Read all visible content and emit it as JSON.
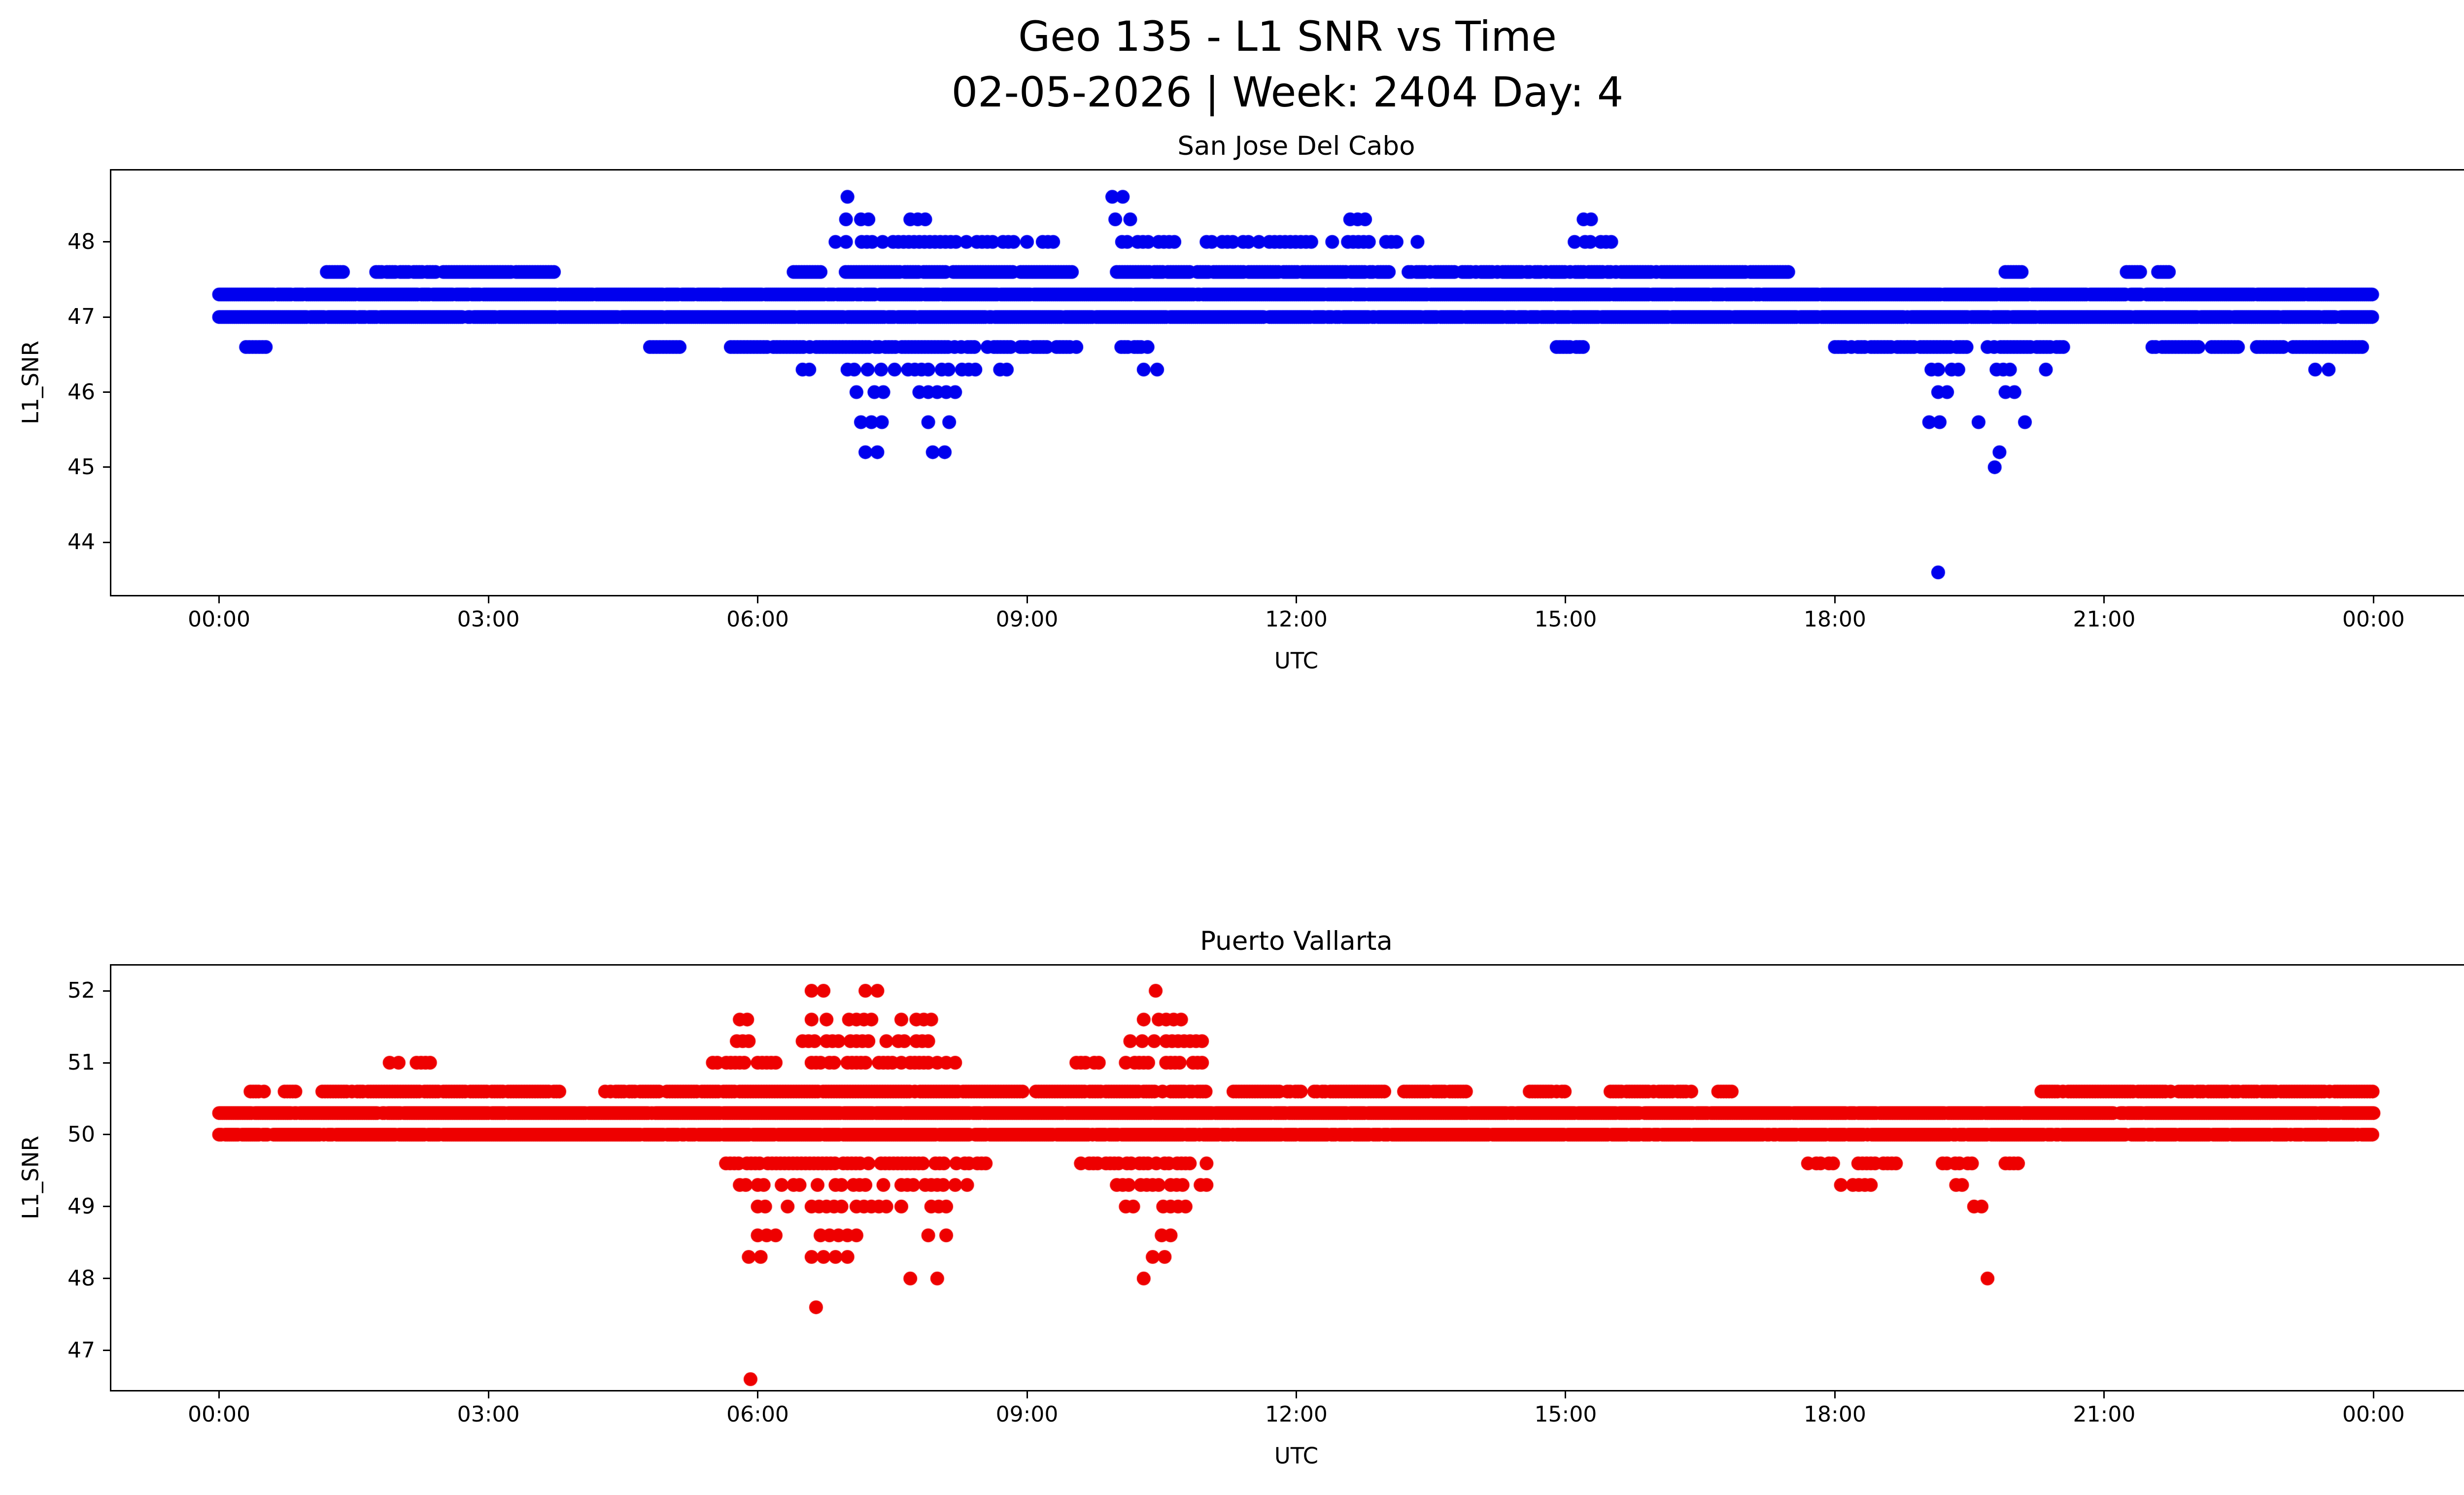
{
  "figure": {
    "title_line1": "Geo 135 - L1 SNR vs Time",
    "title_line2": "02-05-2026 | Week: 2404 Day: 4"
  },
  "chart_data": [
    {
      "type": "scatter",
      "title": "San Jose Del Cabo",
      "xlabel": "UTC",
      "ylabel": "L1_SNR",
      "color": "#0000ee",
      "marker": "o",
      "xlim_hours": [
        -1.2,
        25.2
      ],
      "ylim": [
        43.3,
        48.95
      ],
      "y_ticks": [
        44,
        45,
        46,
        47,
        48
      ],
      "x_ticks": {
        "hours": [
          0,
          3,
          6,
          9,
          12,
          15,
          18,
          21,
          24
        ],
        "labels": [
          "00:00",
          "03:00",
          "06:00",
          "09:00",
          "12:00",
          "15:00",
          "18:00",
          "21:00",
          "00:00"
        ]
      },
      "bands": [
        {
          "y": 47.3,
          "step_min": 1.3,
          "gap": 0.05,
          "segments": [
            [
              0,
              24
            ]
          ]
        },
        {
          "y": 47.0,
          "step_min": 1.3,
          "gap": 0.05,
          "segments": [
            [
              0,
              24
            ]
          ]
        },
        {
          "y": 47.6,
          "step_min": 1.8,
          "gap": 0.1,
          "segments": [
            [
              1.2,
              1.4
            ],
            [
              1.75,
              3.75
            ],
            [
              6.4,
              6.7
            ],
            [
              6.95,
              9.5
            ],
            [
              10.0,
              13.05
            ],
            [
              13.25,
              17.5
            ],
            [
              19.9,
              20.1
            ],
            [
              21.25,
              21.4
            ],
            [
              21.6,
              21.75
            ]
          ]
        },
        {
          "y": 46.6,
          "step_min": 2.2,
          "gap": 0.15,
          "segments": [
            [
              0.3,
              0.55
            ],
            [
              4.8,
              5.2
            ],
            [
              5.7,
              9.6
            ],
            [
              10.05,
              10.35
            ],
            [
              14.9,
              15.2
            ],
            [
              18.0,
              19.5
            ],
            [
              19.7,
              20.6
            ],
            [
              21.5,
              22.5
            ],
            [
              22.7,
              23.9
            ]
          ]
        },
        {
          "y": 48.0,
          "step_min": 3.5,
          "gap": 0.3,
          "segments": [
            [
              6.75,
              8.9
            ],
            [
              9.0,
              9.4
            ],
            [
              10.0,
              10.7
            ],
            [
              11.0,
              12.2
            ],
            [
              12.4,
              12.85
            ],
            [
              13.0,
              13.35
            ],
            [
              15.1,
              15.55
            ]
          ]
        },
        {
          "y": 48.3,
          "step_min": 5,
          "gap": 0.3,
          "segments": [
            [
              6.9,
              7.35
            ],
            [
              7.7,
              7.9
            ],
            [
              9.9,
              10.25
            ],
            [
              12.6,
              12.8
            ],
            [
              15.2,
              15.4
            ]
          ]
        },
        {
          "y": 48.6,
          "step_min": 7,
          "gap": 0.2,
          "segments": [
            [
              7.0,
              7.2
            ],
            [
              9.95,
              10.15
            ]
          ]
        },
        {
          "y": 46.3,
          "step_min": 4.5,
          "gap": 0.35,
          "segments": [
            [
              6.5,
              6.65
            ],
            [
              7.0,
              8.45
            ],
            [
              8.7,
              8.85
            ],
            [
              10.3,
              10.5
            ],
            [
              19.0,
              19.4
            ],
            [
              19.8,
              20.0
            ],
            [
              20.2,
              20.4
            ],
            [
              23.35,
              23.5
            ]
          ]
        },
        {
          "y": 46.0,
          "step_min": 6,
          "gap": 0.3,
          "segments": [
            [
              7.1,
              7.55
            ],
            [
              7.8,
              8.25
            ],
            [
              19.05,
              19.3
            ],
            [
              19.9,
              20.05
            ]
          ]
        },
        {
          "y": 45.6,
          "step_min": 7,
          "gap": 0.3,
          "segments": [
            [
              7.15,
              7.4
            ],
            [
              7.9,
              8.15
            ],
            [
              19.05,
              19.25
            ],
            [
              19.6,
              19.75
            ],
            [
              20.0,
              20.15
            ]
          ]
        },
        {
          "y": 45.2,
          "step_min": 8,
          "gap": 0.25,
          "segments": [
            [
              7.2,
              7.35
            ],
            [
              7.95,
              8.2
            ],
            [
              19.7,
              19.85
            ]
          ]
        },
        {
          "y": 44.9,
          "step_min": 10,
          "gap": 0.2,
          "segments": [
            [
              7.15,
              7.3
            ],
            [
              7.85,
              8.0
            ]
          ]
        }
      ],
      "outliers": [
        [
          19.15,
          43.6
        ],
        [
          19.78,
          45.0
        ]
      ]
    },
    {
      "type": "scatter",
      "title": "Puerto Vallarta",
      "xlabel": "UTC",
      "ylabel": "L1_SNR",
      "color": "#ee0000",
      "marker": "o",
      "xlim_hours": [
        -1.2,
        25.2
      ],
      "ylim": [
        46.45,
        52.35
      ],
      "y_ticks": [
        47,
        48,
        49,
        50,
        51,
        52
      ],
      "x_ticks": {
        "hours": [
          0,
          3,
          6,
          9,
          12,
          15,
          18,
          21,
          24
        ],
        "labels": [
          "00:00",
          "03:00",
          "06:00",
          "09:00",
          "12:00",
          "15:00",
          "18:00",
          "21:00",
          "00:00"
        ]
      },
      "bands": [
        {
          "y": 50.3,
          "step_min": 1.2,
          "gap": 0.04,
          "segments": [
            [
              0,
              24
            ]
          ]
        },
        {
          "y": 50.0,
          "step_min": 1.4,
          "gap": 0.08,
          "segments": [
            [
              0,
              24
            ]
          ]
        },
        {
          "y": 50.6,
          "step_min": 1.8,
          "gap": 0.1,
          "segments": [
            [
              0.35,
              0.5
            ],
            [
              0.7,
              0.85
            ],
            [
              1.15,
              3.8
            ],
            [
              4.3,
              8.95
            ],
            [
              9.1,
              11.0
            ],
            [
              11.3,
              12.05
            ],
            [
              12.2,
              13.0
            ],
            [
              13.2,
              13.9
            ],
            [
              14.6,
              15.0
            ],
            [
              15.5,
              16.4
            ],
            [
              16.7,
              16.85
            ],
            [
              20.3,
              24.0
            ]
          ]
        },
        {
          "y": 51.0,
          "step_min": 3,
          "gap": 0.25,
          "segments": [
            [
              1.9,
              2.0
            ],
            [
              2.2,
              2.35
            ],
            [
              5.5,
              6.35
            ],
            [
              6.6,
              8.2
            ],
            [
              9.55,
              9.85
            ],
            [
              10.1,
              11.0
            ]
          ]
        },
        {
          "y": 51.3,
          "step_min": 4,
          "gap": 0.3,
          "segments": [
            [
              5.7,
              6.2
            ],
            [
              6.5,
              7.95
            ],
            [
              10.15,
              10.95
            ]
          ]
        },
        {
          "y": 51.6,
          "step_min": 5,
          "gap": 0.3,
          "segments": [
            [
              5.8,
              6.15
            ],
            [
              6.6,
              7.35
            ],
            [
              7.6,
              8.05
            ],
            [
              10.3,
              10.75
            ]
          ]
        },
        {
          "y": 52.0,
          "step_min": 8,
          "gap": 0.2,
          "segments": [
            [
              6.6,
              6.75
            ],
            [
              7.2,
              7.4
            ],
            [
              10.3,
              10.45
            ]
          ]
        },
        {
          "y": 49.6,
          "step_min": 2.8,
          "gap": 0.25,
          "segments": [
            [
              5.6,
              8.55
            ],
            [
              9.6,
              11.0
            ],
            [
              17.7,
              18.75
            ],
            [
              19.2,
              19.55
            ],
            [
              19.9,
              20.05
            ]
          ]
        },
        {
          "y": 49.3,
          "step_min": 4,
          "gap": 0.3,
          "segments": [
            [
              5.8,
              8.35
            ],
            [
              10.0,
              11.0
            ],
            [
              18.0,
              18.45
            ],
            [
              19.35,
              19.5
            ]
          ]
        },
        {
          "y": 49.0,
          "step_min": 5,
          "gap": 0.3,
          "segments": [
            [
              6.0,
              6.35
            ],
            [
              6.6,
              8.2
            ],
            [
              10.1,
              10.95
            ],
            [
              19.55,
              19.7
            ]
          ]
        },
        {
          "y": 48.6,
          "step_min": 6,
          "gap": 0.3,
          "segments": [
            [
              6.0,
              6.25
            ],
            [
              6.6,
              7.2
            ],
            [
              7.8,
              8.15
            ],
            [
              10.3,
              10.6
            ]
          ]
        },
        {
          "y": 48.3,
          "step_min": 8,
          "gap": 0.25,
          "segments": [
            [
              5.9,
              6.05
            ],
            [
              6.6,
              7.05
            ],
            [
              10.4,
              10.55
            ]
          ]
        },
        {
          "y": 48.0,
          "step_min": 10,
          "gap": 0.2,
          "segments": [
            [
              7.7,
              7.85
            ],
            [
              8.0,
              8.15
            ],
            [
              10.3,
              10.45
            ],
            [
              19.7,
              19.85
            ]
          ]
        }
      ],
      "outliers": [
        [
          6.65,
          47.6
        ],
        [
          5.92,
          46.6
        ]
      ]
    }
  ]
}
